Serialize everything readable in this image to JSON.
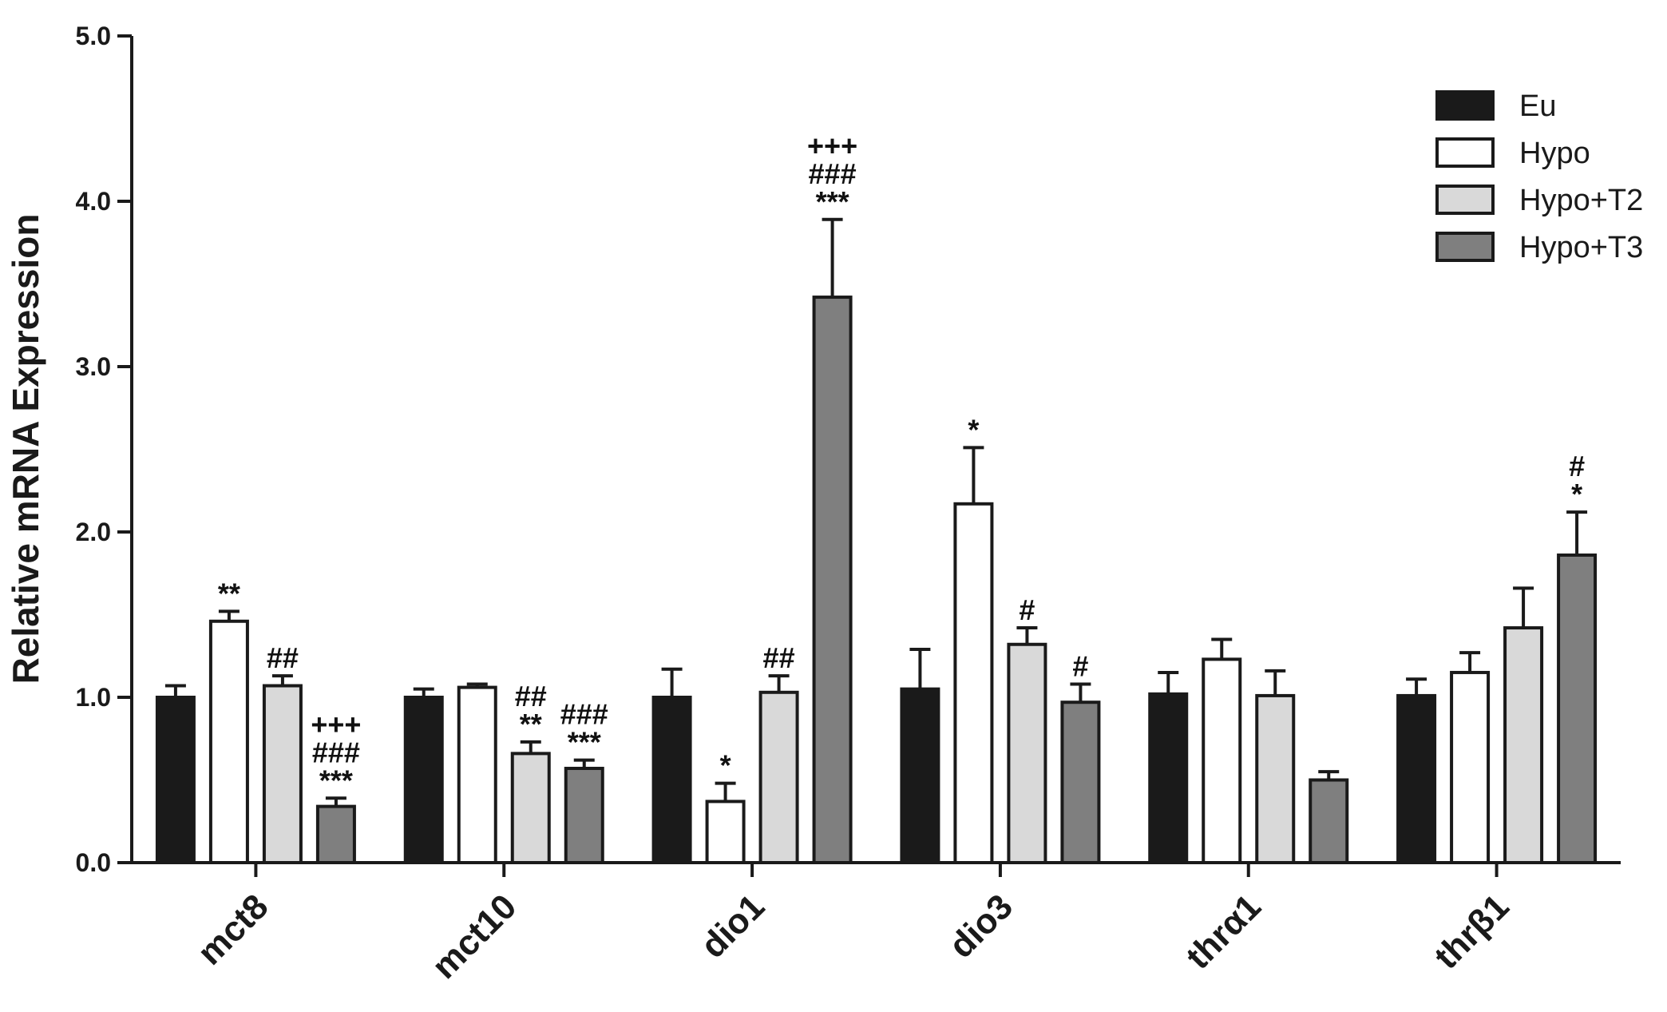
{
  "chart_data": {
    "type": "bar",
    "title": "",
    "xlabel": "",
    "ylabel": "Relative mRNA Expression",
    "ylim": [
      0,
      5
    ],
    "yticks": [
      "0.0",
      "1.0",
      "2.0",
      "3.0",
      "4.0",
      "5.0"
    ],
    "categories": [
      "mct8",
      "mct10",
      "dio1",
      "dio3",
      "thrα1",
      "thrβ1"
    ],
    "legend_position": "top-right",
    "grid": false,
    "series": [
      {
        "name": "Eu",
        "color": "#1a1a1a",
        "values": [
          1.0,
          1.0,
          1.0,
          1.05,
          1.02,
          1.01
        ],
        "errors": [
          0.07,
          0.05,
          0.17,
          0.24,
          0.13,
          0.1
        ],
        "annotations": [
          [],
          [],
          [],
          [],
          [],
          []
        ]
      },
      {
        "name": "Hypo",
        "color": "#ffffff",
        "values": [
          1.46,
          1.06,
          0.37,
          2.17,
          1.23,
          1.15
        ],
        "errors": [
          0.06,
          0.02,
          0.11,
          0.34,
          0.12,
          0.12
        ],
        "annotations": [
          [
            "**"
          ],
          [],
          [
            "*"
          ],
          [
            "*"
          ],
          [],
          []
        ]
      },
      {
        "name": "Hypo+T2",
        "color": "#d9d9d9",
        "values": [
          1.07,
          0.66,
          1.03,
          1.32,
          1.01,
          1.42
        ],
        "errors": [
          0.06,
          0.07,
          0.1,
          0.1,
          0.15,
          0.24
        ],
        "annotations": [
          [
            "##"
          ],
          [
            "##",
            "**"
          ],
          [
            "##"
          ],
          [
            "#"
          ],
          [],
          []
        ]
      },
      {
        "name": "Hypo+T3",
        "color": "#7f7f7f",
        "values": [
          0.34,
          0.57,
          3.42,
          0.97,
          0.5,
          1.86
        ],
        "errors": [
          0.05,
          0.05,
          0.47,
          0.11,
          0.05,
          0.26
        ],
        "annotations": [
          [
            "+++",
            "###",
            "***"
          ],
          [
            "###",
            "***"
          ],
          [
            "+++",
            "###",
            "***"
          ],
          [
            "#"
          ],
          [],
          [
            "#",
            "*"
          ]
        ]
      }
    ]
  }
}
